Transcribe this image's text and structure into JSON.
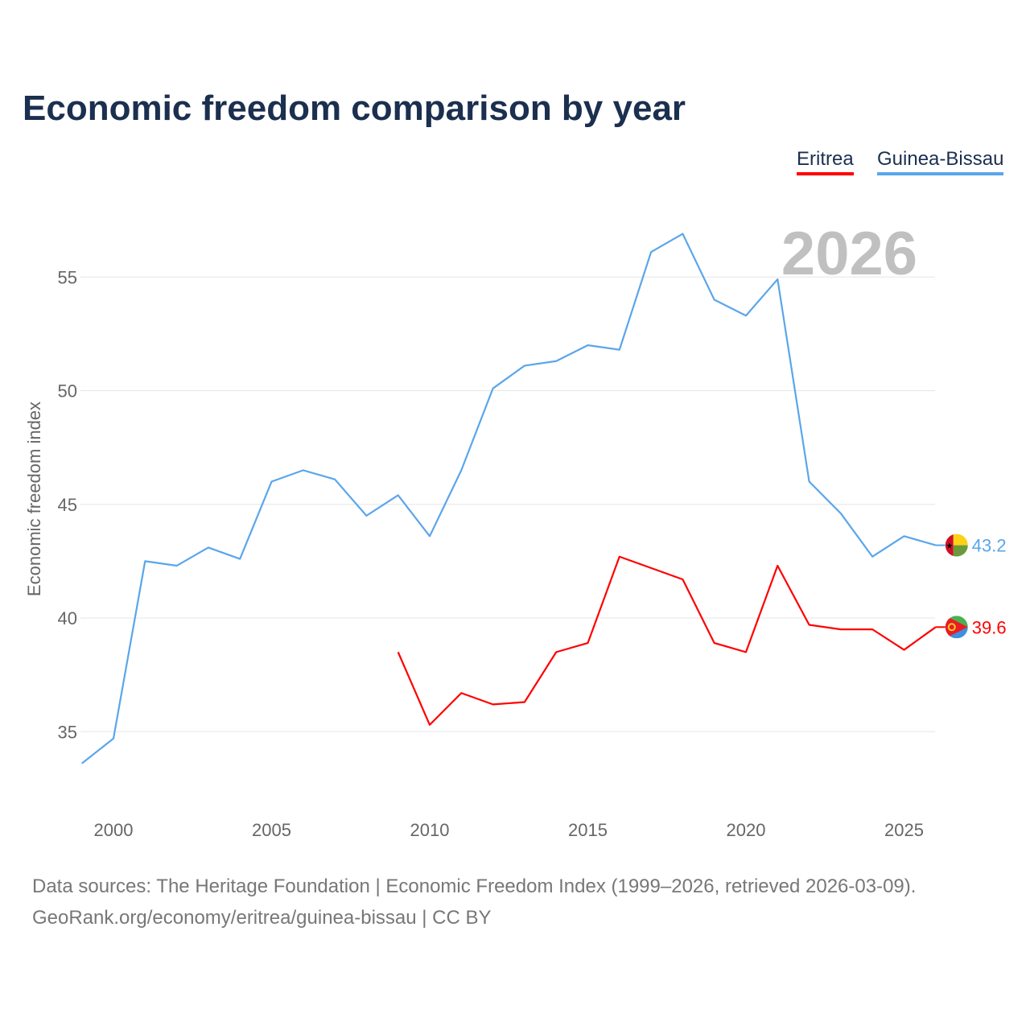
{
  "title": "Economic freedom comparison by year",
  "footer": {
    "line1": "Data sources: The Heritage Foundation | Economic Freedom Index (1999–2026, retrieved 2026-03-09).",
    "line2": "GeoRank.org/economy/eritrea/guinea-bissau | CC BY"
  },
  "chart_data": {
    "type": "line",
    "title": "Economic freedom comparison by year",
    "xlabel": "",
    "ylabel": "Economic freedom index",
    "year_watermark": "2026",
    "xlim": [
      1999,
      2026
    ],
    "ylim": [
      31.5,
      58
    ],
    "xticks": [
      "2000",
      "2005",
      "2010",
      "2015",
      "2020",
      "2025"
    ],
    "yticks": [
      "35",
      "40",
      "45",
      "50",
      "55"
    ],
    "grid": true,
    "legend": "top-right",
    "series": [
      {
        "name": "Eritrea",
        "color": "#ff0000",
        "end_label": "39.6",
        "x": [
          2009,
          2010,
          2011,
          2012,
          2013,
          2014,
          2015,
          2016,
          2017,
          2018,
          2019,
          2020,
          2021,
          2022,
          2023,
          2024,
          2025,
          2026
        ],
        "values": [
          38.5,
          35.3,
          36.7,
          36.2,
          36.3,
          38.5,
          38.9,
          42.7,
          42.2,
          41.7,
          38.9,
          38.5,
          42.3,
          39.7,
          39.5,
          39.5,
          38.6,
          39.6
        ]
      },
      {
        "name": "Guinea-Bissau",
        "color": "#5aa6ea",
        "end_label": "43.2",
        "x": [
          1999,
          2000,
          2001,
          2002,
          2003,
          2004,
          2005,
          2006,
          2007,
          2008,
          2009,
          2010,
          2011,
          2012,
          2013,
          2014,
          2015,
          2016,
          2017,
          2018,
          2019,
          2020,
          2021,
          2022,
          2023,
          2024,
          2025,
          2026
        ],
        "values": [
          33.6,
          34.7,
          42.5,
          42.3,
          43.1,
          42.6,
          46.0,
          46.5,
          46.1,
          44.5,
          45.4,
          43.6,
          46.5,
          50.1,
          51.1,
          51.3,
          52.0,
          51.8,
          56.1,
          56.9,
          54.0,
          53.3,
          54.9,
          46.0,
          44.6,
          42.7,
          43.6,
          43.2
        ]
      }
    ]
  }
}
